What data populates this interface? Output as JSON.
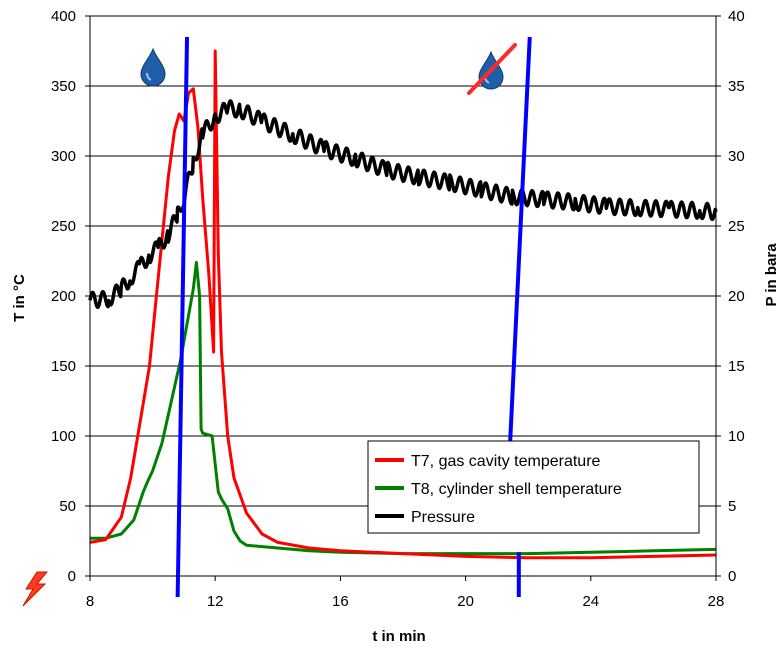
{
  "chart_data": {
    "type": "line",
    "title": "",
    "xlabel": "t in min",
    "ylabel": "T in °C",
    "y2label": "P in bara",
    "xlim": [
      8,
      28
    ],
    "ylim": [
      0,
      400
    ],
    "y2lim": [
      0,
      40
    ],
    "x_ticks": [
      "8",
      "12",
      "16",
      "20",
      "24",
      "28"
    ],
    "y_ticks": [
      "0",
      "50",
      "100",
      "150",
      "200",
      "250",
      "300",
      "350",
      "400"
    ],
    "y2_ticks": [
      "0",
      "5",
      "10",
      "15",
      "20",
      "25",
      "30",
      "35",
      "40"
    ],
    "grid": "horizontal",
    "legend_position": "bottom-right",
    "series": [
      {
        "name": "T7, gas cavity temperature",
        "color": "#ff0000",
        "axis": "left",
        "x": [
          8,
          8.5,
          9.0,
          9.3,
          9.6,
          9.9,
          10.1,
          10.3,
          10.5,
          10.7,
          10.85,
          11.0,
          11.15,
          11.3,
          11.45,
          11.6,
          11.8,
          11.95,
          12.0,
          12.05,
          12.1,
          12.2,
          12.4,
          12.6,
          13.0,
          13.5,
          14,
          15,
          16,
          17,
          18,
          20,
          22,
          24,
          26,
          28
        ],
        "values": [
          24,
          26,
          42,
          70,
          110,
          150,
          195,
          240,
          285,
          318,
          330,
          325,
          345,
          348,
          320,
          270,
          215,
          160,
          375,
          300,
          230,
          160,
          100,
          70,
          45,
          30,
          24,
          20,
          18,
          17,
          16,
          14,
          13,
          13,
          14,
          15
        ]
      },
      {
        "name": "T8, cylinder shell temperature",
        "color": "#008000",
        "axis": "left",
        "x": [
          8,
          8.5,
          9.0,
          9.4,
          9.7,
          9.85,
          10.0,
          10.3,
          10.6,
          10.9,
          11.1,
          11.3,
          11.4,
          11.5,
          11.55,
          11.6,
          11.9,
          12.1,
          12.2,
          12.4,
          12.6,
          12.8,
          13.0,
          13.5,
          14,
          15,
          16,
          18,
          20,
          22,
          24,
          26,
          28
        ],
        "values": [
          27,
          27,
          30,
          40,
          60,
          68,
          75,
          95,
          125,
          155,
          180,
          205,
          224,
          200,
          105,
          102,
          100,
          60,
          55,
          48,
          32,
          25,
          22,
          21,
          20,
          18,
          17,
          16,
          16,
          16,
          17,
          18,
          19
        ]
      },
      {
        "name": "Pressure",
        "color": "#000000",
        "axis": "right",
        "x": [
          8,
          8.6,
          9.0,
          9.3,
          9.6,
          9.9,
          10.2,
          10.5,
          10.8,
          11.0,
          11.3,
          11.6,
          12.0,
          12.4,
          12.8,
          13.5,
          14.5,
          15.5,
          16.5,
          17.5,
          18.5,
          19.5,
          20.5,
          21.5,
          22.5,
          23.5,
          24.5,
          25.5,
          26.5,
          27.5,
          28
        ],
        "values": [
          19.7,
          19.8,
          20.5,
          21.3,
          22.1,
          22.9,
          23.5,
          24.4,
          25.8,
          27.0,
          29.5,
          31.6,
          32.8,
          33.4,
          33.3,
          32.5,
          31.5,
          30.5,
          29.8,
          29.0,
          28.5,
          28.1,
          27.6,
          27.1,
          26.9,
          26.7,
          26.4,
          26.3,
          26.2,
          26.1,
          26.0
        ]
      }
    ],
    "markers": [
      {
        "type": "vertical-line",
        "color": "#0000ff",
        "x_top": 11.1,
        "x_bottom": 10.8,
        "y_top": 385,
        "y_bottom": -15
      },
      {
        "type": "vertical-line",
        "color": "#0000ff",
        "x_top": 22.05,
        "x_bottom": 21.4,
        "y_top": 385,
        "y_bottom": 85
      },
      {
        "type": "vertical-line",
        "color": "#0000ff",
        "x_top": 21.7,
        "x_bottom": 21.7,
        "y_top": 17,
        "y_bottom": -15
      }
    ]
  }
}
